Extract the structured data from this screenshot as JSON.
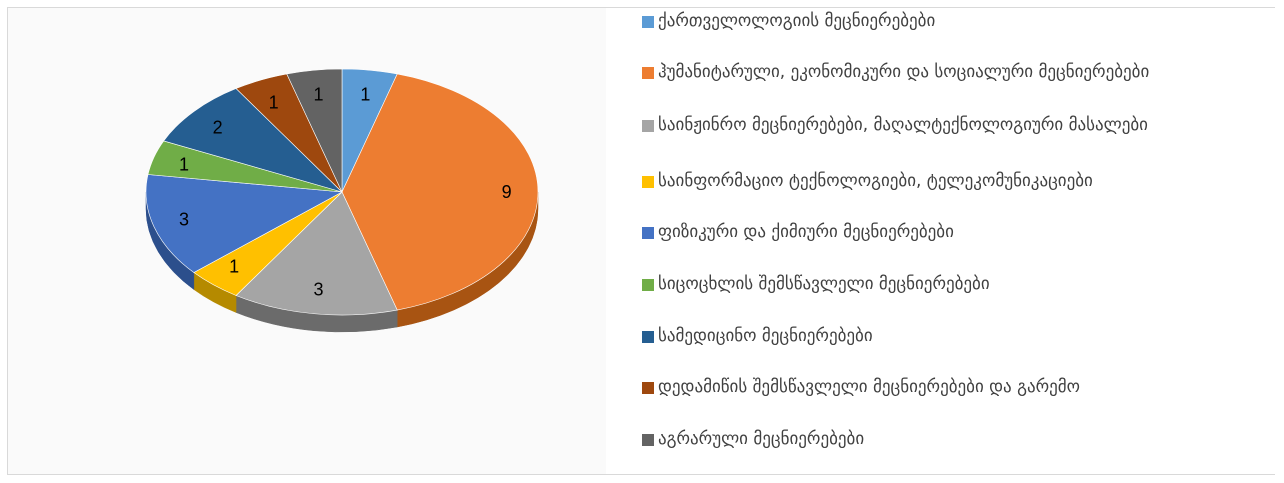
{
  "chart_data": {
    "type": "pie",
    "title": "",
    "legend_position": "right",
    "slices": [
      {
        "name": "ქართველოლოგიის მეცნიერებები",
        "value": 1,
        "label": "1",
        "color": "#5B9BD5",
        "side": "#3f73a3"
      },
      {
        "name": "ჰუმანიტარული, ეკონომიკური და სოციალური მეცნიერებები",
        "value": 9,
        "label": "9",
        "color": "#ED7D31",
        "side": "#a85412"
      },
      {
        "name": "საინჟინრო მეცნიერებები, მაღალტექნოლოგიური მასალები",
        "value": 3,
        "label": "3",
        "color": "#A5A5A5",
        "side": "#6b6b6b"
      },
      {
        "name": "საინფორმაციო ტექნოლოგიები, ტელეკომუნიკაციები",
        "value": 1,
        "label": "1",
        "color": "#FFC000",
        "side": "#b58a00"
      },
      {
        "name": "ფიზიკური და ქიმიური მეცნიერებები",
        "value": 3,
        "label": "3",
        "color": "#4472C4",
        "side": "#2c4f8c"
      },
      {
        "name": "სიცოცხლის შემსწავლელი მეცნიერებები",
        "value": 1,
        "label": "1",
        "color": "#70AD47",
        "side": "#4c7a2f"
      },
      {
        "name": "სამედიცინო მეცნიერებები",
        "value": 2,
        "label": "2",
        "color": "#255E91",
        "side": "#173d61"
      },
      {
        "name": "დედამიწის შემსწავლელი მეცნიერებები და გარემო",
        "value": 1,
        "label": "1",
        "color": "#9E480E",
        "side": "#6b2f08"
      },
      {
        "name": "აგრარული მეცნიერებები",
        "value": 1,
        "label": "1",
        "color": "#636363",
        "side": "#404040"
      }
    ]
  }
}
